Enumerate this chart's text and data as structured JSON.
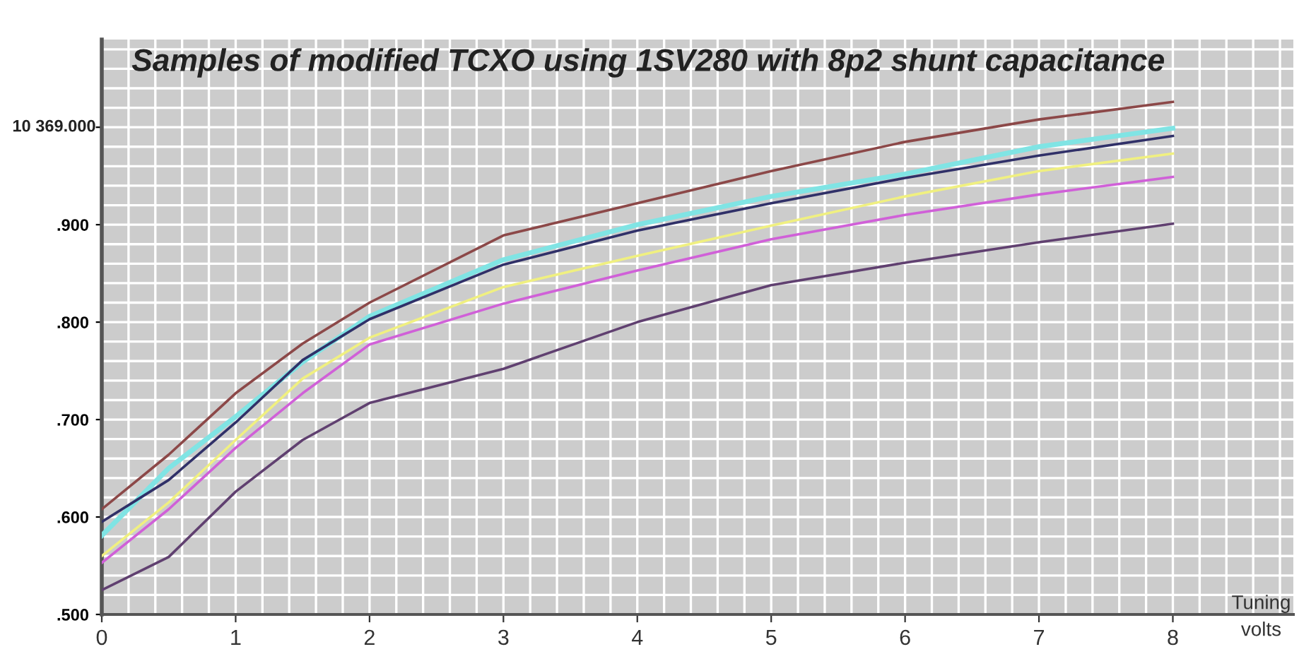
{
  "chart_data": {
    "type": "line",
    "title": "Samples of modified TCXO using 1SV280 with 8p2 shunt capacitance",
    "xlabel": "Tuning\nvolts",
    "annotations": [
      "10 369.000"
    ],
    "x": [
      0,
      0.5,
      1,
      1.5,
      2,
      3,
      4,
      5,
      6,
      7,
      8
    ],
    "series": [
      {
        "color": "#8c4848",
        "values": [
          0.608,
          0.664,
          0.727,
          0.778,
          0.82,
          0.889,
          0.922,
          0.955,
          0.985,
          1.008,
          1.026
        ]
      },
      {
        "color": "#80e4e4",
        "values": [
          0.581,
          0.65,
          0.703,
          0.759,
          0.806,
          0.864,
          0.9,
          0.929,
          0.952,
          0.98,
          0.999
        ]
      },
      {
        "color": "#303068",
        "values": [
          0.595,
          0.638,
          0.697,
          0.761,
          0.803,
          0.859,
          0.894,
          0.922,
          0.948,
          0.971,
          0.991
        ]
      },
      {
        "color": "#f0f080",
        "values": [
          0.56,
          0.615,
          0.679,
          0.742,
          0.784,
          0.836,
          0.868,
          0.899,
          0.929,
          0.955,
          0.973
        ]
      },
      {
        "color": "#d060d8",
        "values": [
          0.553,
          0.608,
          0.671,
          0.727,
          0.777,
          0.819,
          0.853,
          0.885,
          0.91,
          0.931,
          0.949
        ]
      },
      {
        "color": "#604070",
        "values": [
          0.525,
          0.559,
          0.626,
          0.679,
          0.717,
          0.752,
          0.8,
          0.838,
          0.861,
          0.882,
          0.901
        ]
      }
    ],
    "xlim": [
      0,
      8.9
    ],
    "xticks": [
      0,
      1,
      2,
      3,
      4,
      5,
      6,
      7,
      8
    ],
    "ylim": [
      0.5,
      1.09
    ],
    "yticks": [
      {
        "value": 0.5,
        "label": ".500"
      },
      {
        "value": 0.6,
        "label": ".600"
      },
      {
        "value": 0.7,
        "label": ".700"
      },
      {
        "value": 0.8,
        "label": ".800"
      },
      {
        "value": 0.9,
        "label": ".900"
      },
      {
        "value": 1.0,
        "label": null
      }
    ],
    "grid": true,
    "marker": "none",
    "line_style": "solid",
    "legend": false
  }
}
